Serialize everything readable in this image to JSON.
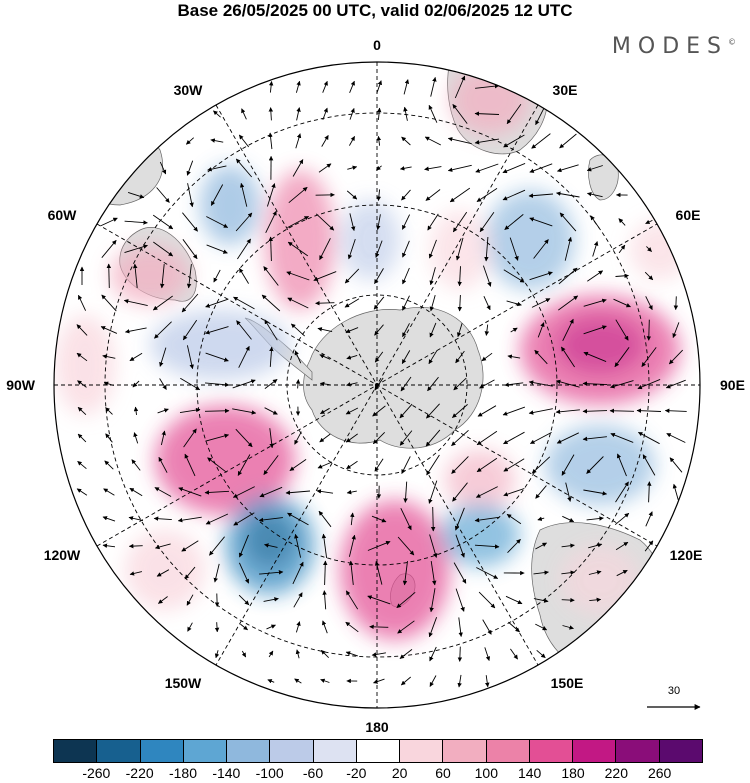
{
  "title": "Base 26/05/2025 00 UTC, valid 02/06/2025 12 UTC",
  "logo": {
    "text": "MODES",
    "mark": "©"
  },
  "map": {
    "projection": "south-polar-stereographic",
    "longitude_labels": [
      "0",
      "30E",
      "60E",
      "90E",
      "120E",
      "150E",
      "180",
      "150W",
      "120W",
      "90W",
      "60W",
      "30W"
    ],
    "vector_scale_label": "30",
    "icons": [
      "compass-grid",
      "wind-vector-arrows",
      "landmass-shading"
    ]
  },
  "colorbar": {
    "ticks": [
      "-260",
      "-220",
      "-180",
      "-140",
      "-100",
      "-60",
      "-20",
      "20",
      "60",
      "100",
      "140",
      "180",
      "220",
      "260"
    ],
    "colors": [
      "#0d3552",
      "#17608f",
      "#2f86bf",
      "#5ea6d3",
      "#8fb8dd",
      "#bccbe8",
      "#dde2f2",
      "#ffffff",
      "#f9d6dd",
      "#f2aec0",
      "#ec82a8",
      "#e34f95",
      "#c21884",
      "#8a0d79",
      "#5b0a6e"
    ]
  }
}
